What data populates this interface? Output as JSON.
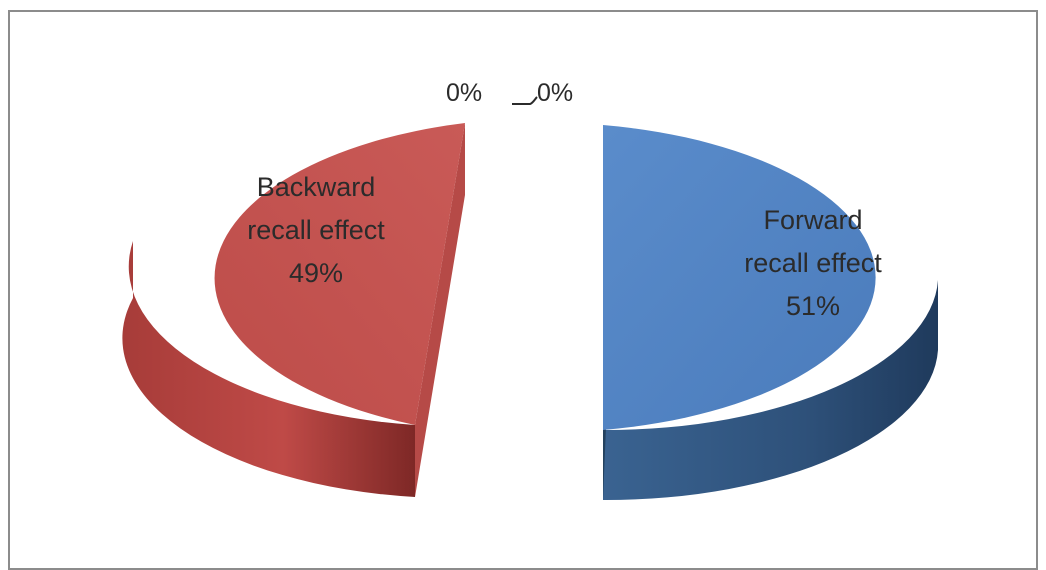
{
  "chart_data": {
    "type": "pie",
    "style": "3d-exploded",
    "title": "",
    "slices": [
      {
        "name": "Forward recall effect",
        "value": 51,
        "percent_label": "51%",
        "color": "#4f81bd",
        "side_color": "#2d4f75"
      },
      {
        "name": "Backward recall effect",
        "value": 49,
        "percent_label": "49%",
        "color": "#c0504d",
        "side_color": "#8e2f2d"
      },
      {
        "name": "",
        "value": 0,
        "percent_label": "0%"
      },
      {
        "name": "",
        "value": 0,
        "percent_label": "0%"
      }
    ],
    "labels": {
      "forward": [
        "Forward",
        "recall effect",
        "51%"
      ],
      "backward": [
        "Backward",
        "recall effect",
        "49%"
      ],
      "zero_left": "0%",
      "zero_right": "0%"
    }
  }
}
